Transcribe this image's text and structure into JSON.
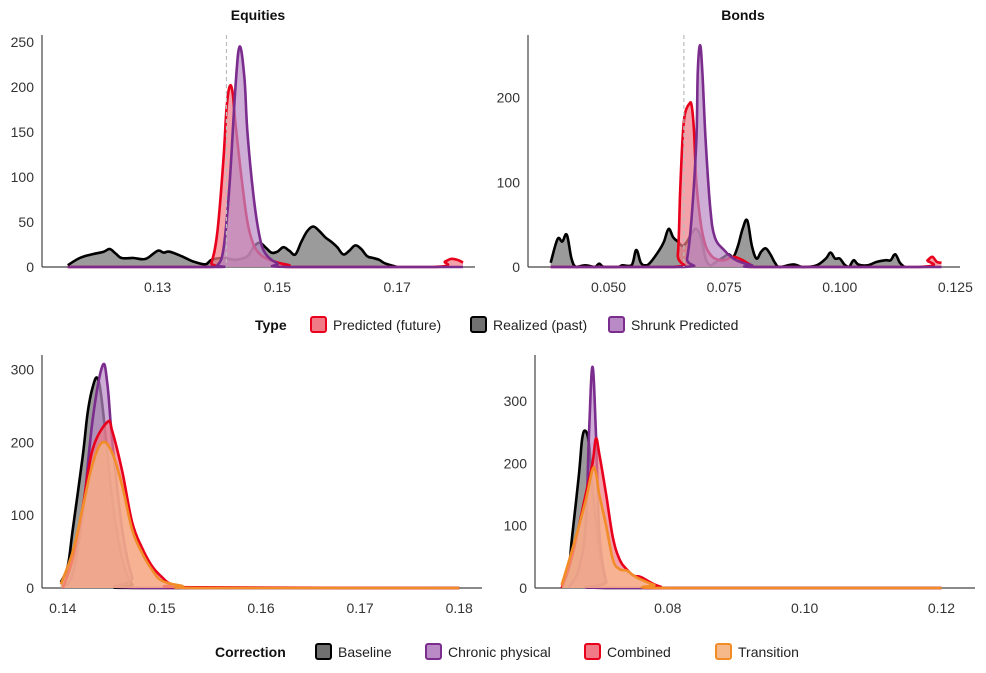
{
  "legend_top": {
    "title": "Type",
    "items": [
      {
        "label": "Predicted (future)",
        "stroke": "#e8001c",
        "fill": "#f07a85"
      },
      {
        "label": "Realized (past)",
        "stroke": "#000000",
        "fill": "#707070"
      },
      {
        "label": "Shrunk Predicted",
        "stroke": "#7b2d8e",
        "fill": "#b98ac6"
      }
    ]
  },
  "legend_bottom": {
    "title": "Correction",
    "items": [
      {
        "label": "Baseline",
        "stroke": "#000000",
        "fill": "#707070"
      },
      {
        "label": "Chronic physical",
        "stroke": "#7b2d8e",
        "fill": "#b98ac6"
      },
      {
        "label": "Combined",
        "stroke": "#e8001c",
        "fill": "#f07a85"
      },
      {
        "label": "Transition",
        "stroke": "#f28c28",
        "fill": "#f6b98a"
      }
    ]
  },
  "chart_data": [
    {
      "type": "area",
      "title": "Equities",
      "xlim": [
        0.1107,
        0.183
      ],
      "ylim": [
        0,
        250
      ],
      "xticks": [
        "0.13",
        "0.15",
        "0.17"
      ],
      "xtick_values": [
        0.13,
        0.15,
        0.17
      ],
      "yticks": [
        "0",
        "50",
        "100",
        "150",
        "200",
        "250"
      ],
      "ytick_values": [
        0,
        50,
        100,
        150,
        200,
        250
      ],
      "reference_line_x": 0.1415,
      "series": [
        {
          "name": "Realized (past)",
          "x": [
            0.115,
            0.117,
            0.119,
            0.121,
            0.122,
            0.123,
            0.124,
            0.126,
            0.128,
            0.13,
            0.131,
            0.132,
            0.134,
            0.136,
            0.138,
            0.139,
            0.141,
            0.143,
            0.145,
            0.146,
            0.147,
            0.148,
            0.149,
            0.15,
            0.151,
            0.152,
            0.153,
            0.154,
            0.155,
            0.156,
            0.157,
            0.158,
            0.159,
            0.16,
            0.161,
            0.162,
            0.163,
            0.164,
            0.165,
            0.166,
            0.167,
            0.168,
            0.17
          ],
          "y": [
            2,
            10,
            14,
            17,
            20,
            15,
            10,
            10,
            9,
            18,
            16,
            17,
            12,
            6,
            3,
            8,
            10,
            8,
            12,
            22,
            27,
            22,
            16,
            17,
            22,
            18,
            14,
            28,
            40,
            45,
            40,
            33,
            28,
            22,
            14,
            18,
            24,
            20,
            12,
            10,
            8,
            4,
            0
          ]
        },
        {
          "name": "Predicted (future)",
          "x": [
            0.115,
            0.138,
            0.139,
            0.14,
            0.141,
            0.1415,
            0.142,
            0.1425,
            0.143,
            0.144,
            0.145,
            0.146,
            0.147,
            0.148,
            0.15,
            0.152,
            0.153,
            0.176,
            0.178,
            0.179,
            0.18,
            0.181
          ],
          "y": [
            0,
            0,
            5,
            40,
            120,
            175,
            200,
            195,
            160,
            100,
            50,
            25,
            15,
            10,
            5,
            2,
            0,
            0,
            6,
            9,
            8,
            5
          ]
        },
        {
          "name": "Shrunk Predicted",
          "x": [
            0.115,
            0.139,
            0.14,
            0.141,
            0.142,
            0.143,
            0.1437,
            0.1445,
            0.145,
            0.146,
            0.147,
            0.148,
            0.15,
            0.152,
            0.181
          ],
          "y": [
            0,
            0,
            2,
            20,
            90,
            200,
            245,
            210,
            150,
            80,
            35,
            15,
            4,
            0,
            0
          ]
        }
      ]
    },
    {
      "type": "area",
      "title": "Bonds",
      "xlim": [
        0.0326,
        0.126
      ],
      "ylim": [
        0,
        274
      ],
      "xticks": [
        "0.050",
        "0.075",
        "0.100",
        "0.125"
      ],
      "xtick_values": [
        0.05,
        0.075,
        0.1,
        0.125
      ],
      "yticks": [
        "0",
        "100",
        "200"
      ],
      "ytick_values": [
        0,
        100,
        200
      ],
      "reference_line_x": 0.0663,
      "series": [
        {
          "name": "Realized (past)",
          "x": [
            0.0375,
            0.039,
            0.04,
            0.041,
            0.042,
            0.043,
            0.045,
            0.047,
            0.048,
            0.049,
            0.052,
            0.053,
            0.055,
            0.056,
            0.057,
            0.058,
            0.059,
            0.061,
            0.062,
            0.063,
            0.064,
            0.065,
            0.066,
            0.067,
            0.068,
            0.069,
            0.07,
            0.071,
            0.072,
            0.073,
            0.075,
            0.076,
            0.077,
            0.078,
            0.079,
            0.08,
            0.081,
            0.082,
            0.083,
            0.084,
            0.085,
            0.086,
            0.087,
            0.09,
            0.092,
            0.095,
            0.097,
            0.098,
            0.099,
            0.1,
            0.101,
            0.102,
            0.103,
            0.104,
            0.106,
            0.108,
            0.11,
            0.111,
            0.112,
            0.113,
            0.114
          ],
          "y": [
            5,
            33,
            30,
            38,
            10,
            0,
            2,
            0,
            4,
            0,
            0,
            2,
            2,
            20,
            5,
            2,
            5,
            20,
            30,
            45,
            35,
            30,
            25,
            30,
            40,
            45,
            35,
            10,
            2,
            5,
            12,
            15,
            12,
            25,
            45,
            55,
            25,
            10,
            18,
            22,
            15,
            5,
            0,
            3,
            0,
            2,
            10,
            17,
            10,
            10,
            3,
            0,
            8,
            3,
            2,
            6,
            8,
            8,
            15,
            5,
            0
          ]
        },
        {
          "name": "Predicted (future)",
          "x": [
            0.0375,
            0.064,
            0.065,
            0.0655,
            0.066,
            0.0665,
            0.0675,
            0.068,
            0.0685,
            0.069,
            0.07,
            0.071,
            0.072,
            0.073,
            0.075,
            0.077,
            0.079,
            0.081,
            0.083,
            0.117,
            0.119,
            0.12,
            0.121,
            0.122
          ],
          "y": [
            0,
            0,
            15,
            90,
            150,
            180,
            193,
            190,
            160,
            100,
            50,
            25,
            15,
            10,
            8,
            12,
            8,
            2,
            0,
            0,
            8,
            12,
            6,
            5
          ]
        },
        {
          "name": "Shrunk Predicted",
          "x": [
            0.0375,
            0.066,
            0.067,
            0.068,
            0.069,
            0.0693,
            0.0698,
            0.0703,
            0.071,
            0.072,
            0.073,
            0.075,
            0.077,
            0.079,
            0.081,
            0.083,
            0.122
          ],
          "y": [
            0,
            0,
            10,
            60,
            150,
            230,
            262,
            230,
            150,
            70,
            35,
            20,
            10,
            5,
            2,
            0,
            0
          ]
        }
      ]
    },
    {
      "type": "area",
      "xlim": [
        0.1379,
        0.1823
      ],
      "ylim": [
        0,
        320
      ],
      "xticks": [
        "0.14",
        "0.15",
        "0.16",
        "0.17",
        "0.18"
      ],
      "xtick_values": [
        0.14,
        0.15,
        0.16,
        0.17,
        0.18
      ],
      "yticks": [
        "0",
        "100",
        "200",
        "300"
      ],
      "ytick_values": [
        0,
        100,
        200,
        300
      ],
      "series": [
        {
          "name": "Baseline",
          "x": [
            0.1398,
            0.1405,
            0.141,
            0.142,
            0.1425,
            0.143,
            0.1435,
            0.144,
            0.145,
            0.146,
            0.147,
            0.148,
            0.18
          ],
          "y": [
            8,
            30,
            80,
            180,
            240,
            275,
            288,
            250,
            120,
            40,
            5,
            0,
            0
          ]
        },
        {
          "name": "Chronic physical",
          "x": [
            0.14,
            0.141,
            0.142,
            0.143,
            0.144,
            0.1445,
            0.145,
            0.146,
            0.147,
            0.148,
            0.18
          ],
          "y": [
            0,
            20,
            100,
            230,
            305,
            280,
            200,
            80,
            15,
            0,
            0
          ]
        },
        {
          "name": "Combined",
          "x": [
            0.14,
            0.141,
            0.142,
            0.143,
            0.1445,
            0.145,
            0.146,
            0.147,
            0.148,
            0.149,
            0.15,
            0.151,
            0.153,
            0.18
          ],
          "y": [
            0,
            40,
            110,
            190,
            228,
            215,
            160,
            90,
            55,
            30,
            15,
            5,
            1,
            0
          ]
        },
        {
          "name": "Transition",
          "x": [
            0.1398,
            0.141,
            0.142,
            0.143,
            0.144,
            0.145,
            0.146,
            0.147,
            0.148,
            0.149,
            0.15,
            0.152,
            0.154,
            0.18
          ],
          "y": [
            5,
            50,
            110,
            170,
            200,
            185,
            140,
            80,
            48,
            25,
            10,
            3,
            0,
            0
          ]
        }
      ]
    },
    {
      "type": "area",
      "xlim": [
        0.0606,
        0.1249
      ],
      "ylim": [
        0,
        374
      ],
      "xticks": [
        "0.08",
        "0.10",
        "0.12"
      ],
      "xtick_values": [
        0.08,
        0.1,
        0.12
      ],
      "yticks": [
        "0",
        "100",
        "200",
        "300"
      ],
      "ytick_values": [
        0,
        100,
        200,
        300
      ],
      "series": [
        {
          "name": "Baseline",
          "x": [
            0.0645,
            0.0655,
            0.066,
            0.067,
            0.0675,
            0.068,
            0.0685,
            0.069,
            0.07,
            0.071,
            0.072,
            0.12
          ],
          "y": [
            5,
            30,
            80,
            180,
            240,
            252,
            230,
            160,
            60,
            10,
            0,
            0
          ]
        },
        {
          "name": "Chronic physical",
          "x": [
            0.0655,
            0.067,
            0.068,
            0.0685,
            0.069,
            0.0695,
            0.07,
            0.071,
            0.072,
            0.12
          ],
          "y": [
            0,
            30,
            100,
            250,
            355,
            250,
            90,
            10,
            0,
            0
          ]
        },
        {
          "name": "Combined",
          "x": [
            0.0645,
            0.066,
            0.068,
            0.069,
            0.0695,
            0.07,
            0.071,
            0.072,
            0.073,
            0.074,
            0.075,
            0.076,
            0.077,
            0.078,
            0.079,
            0.08,
            0.12
          ],
          "y": [
            0,
            50,
            150,
            200,
            240,
            215,
            150,
            80,
            45,
            30,
            20,
            18,
            12,
            6,
            2,
            0,
            0
          ]
        },
        {
          "name": "Transition",
          "x": [
            0.0645,
            0.066,
            0.068,
            0.069,
            0.0695,
            0.07,
            0.071,
            0.072,
            0.073,
            0.074,
            0.075,
            0.076,
            0.078,
            0.08,
            0.12
          ],
          "y": [
            5,
            60,
            140,
            190,
            185,
            150,
            100,
            45,
            30,
            28,
            20,
            14,
            5,
            0,
            0
          ]
        }
      ]
    }
  ]
}
